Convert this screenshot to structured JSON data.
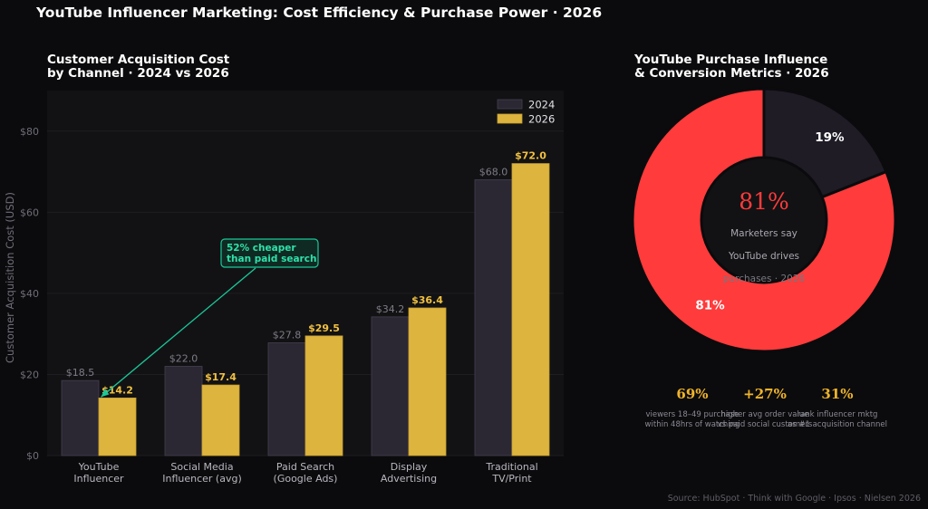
{
  "title": "YouTube Influencer Marketing: Cost Efficiency & Purchase Power · 2026",
  "source": "Source: HubSpot · Think with Google · Ipsos · Nielsen 2026",
  "colors": {
    "background": "#0b0b0d",
    "plot_bg": "#121214",
    "series_2024": "#2b2733",
    "series_2026": "#ddb43e",
    "accent_red": "#ff3b3b",
    "donut_dark": "#1f1c26",
    "annotation": "#19c99a"
  },
  "chart_data": [
    {
      "type": "bar",
      "title_lines": [
        "Customer Acquisition Cost",
        "by Channel · 2024 vs 2026"
      ],
      "ylabel": "Customer Acquisition Cost (USD)",
      "ylim": [
        0,
        90
      ],
      "yticks": [
        0,
        20,
        40,
        60,
        80
      ],
      "ytick_labels": [
        "$0",
        "$20",
        "$40",
        "$60",
        "$80"
      ],
      "categories": [
        [
          "YouTube",
          "Influencer"
        ],
        [
          "Social Media",
          "Influencer (avg)"
        ],
        [
          "Paid Search",
          "(Google Ads)"
        ],
        [
          "Display",
          "Advertising"
        ],
        [
          "Traditional",
          "TV/Print"
        ]
      ],
      "series": [
        {
          "name": "2024",
          "values": [
            18.5,
            22.0,
            27.8,
            34.2,
            68.0
          ],
          "labels": [
            "$18.5",
            "$22.0",
            "$27.8",
            "$34.2",
            "$68.0"
          ]
        },
        {
          "name": "2026",
          "values": [
            14.2,
            17.4,
            29.5,
            36.4,
            72.0
          ],
          "labels": [
            "$14.2",
            "$17.4",
            "$29.5",
            "$36.4",
            "$72.0"
          ]
        }
      ],
      "annotation": {
        "lines": [
          "52% cheaper",
          "than paid search"
        ],
        "target_category": 0,
        "target_series": 1
      },
      "legend": "top-right",
      "grid": true
    },
    {
      "type": "pie",
      "title_lines": [
        "YouTube Purchase Influence",
        "& Conversion Metrics · 2026"
      ],
      "values": [
        81,
        19
      ],
      "slice_labels": [
        "81%",
        "19%"
      ],
      "center": {
        "value": "81%",
        "lines": [
          "Marketers say",
          "YouTube drives",
          "purchases · 2026"
        ]
      }
    }
  ],
  "stats": [
    {
      "value": "69%",
      "desc_lines": [
        "viewers 18–49 purchase",
        "within 48hrs of watching"
      ]
    },
    {
      "value": "+27%",
      "desc_lines": [
        "higher avg order value",
        "vs paid social customers"
      ]
    },
    {
      "value": "31%",
      "desc_lines": [
        "rank influencer mktg",
        "as #1 acquisition channel"
      ]
    }
  ]
}
